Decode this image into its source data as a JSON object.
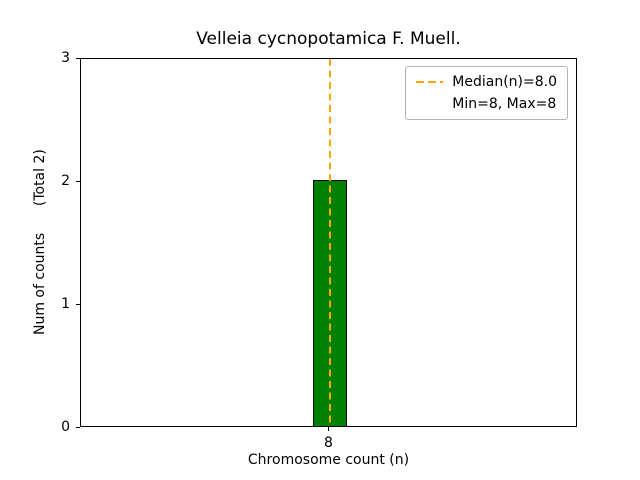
{
  "chart_data": {
    "type": "bar",
    "title": "Velleia cycnopotamica F. Muell.",
    "xlabel": "Chromosome count (n)",
    "ylabel": "Num of counts      (Total 2)",
    "categories": [
      "8"
    ],
    "values": [
      2
    ],
    "ylim": [
      0,
      3
    ],
    "yticks": [
      0,
      1,
      2,
      3
    ],
    "bar_color": "#008000",
    "bar_edge_color": "#000000",
    "median_line": {
      "value": 8.0,
      "color": "#ffa500",
      "style": "dashed"
    },
    "legend": [
      {
        "label": "Median(n)=8.0",
        "symbol": "orange-dashed-line"
      },
      {
        "label": "Min=8, Max=8",
        "symbol": "none"
      }
    ],
    "legend_position": "upper right",
    "grid": false
  }
}
